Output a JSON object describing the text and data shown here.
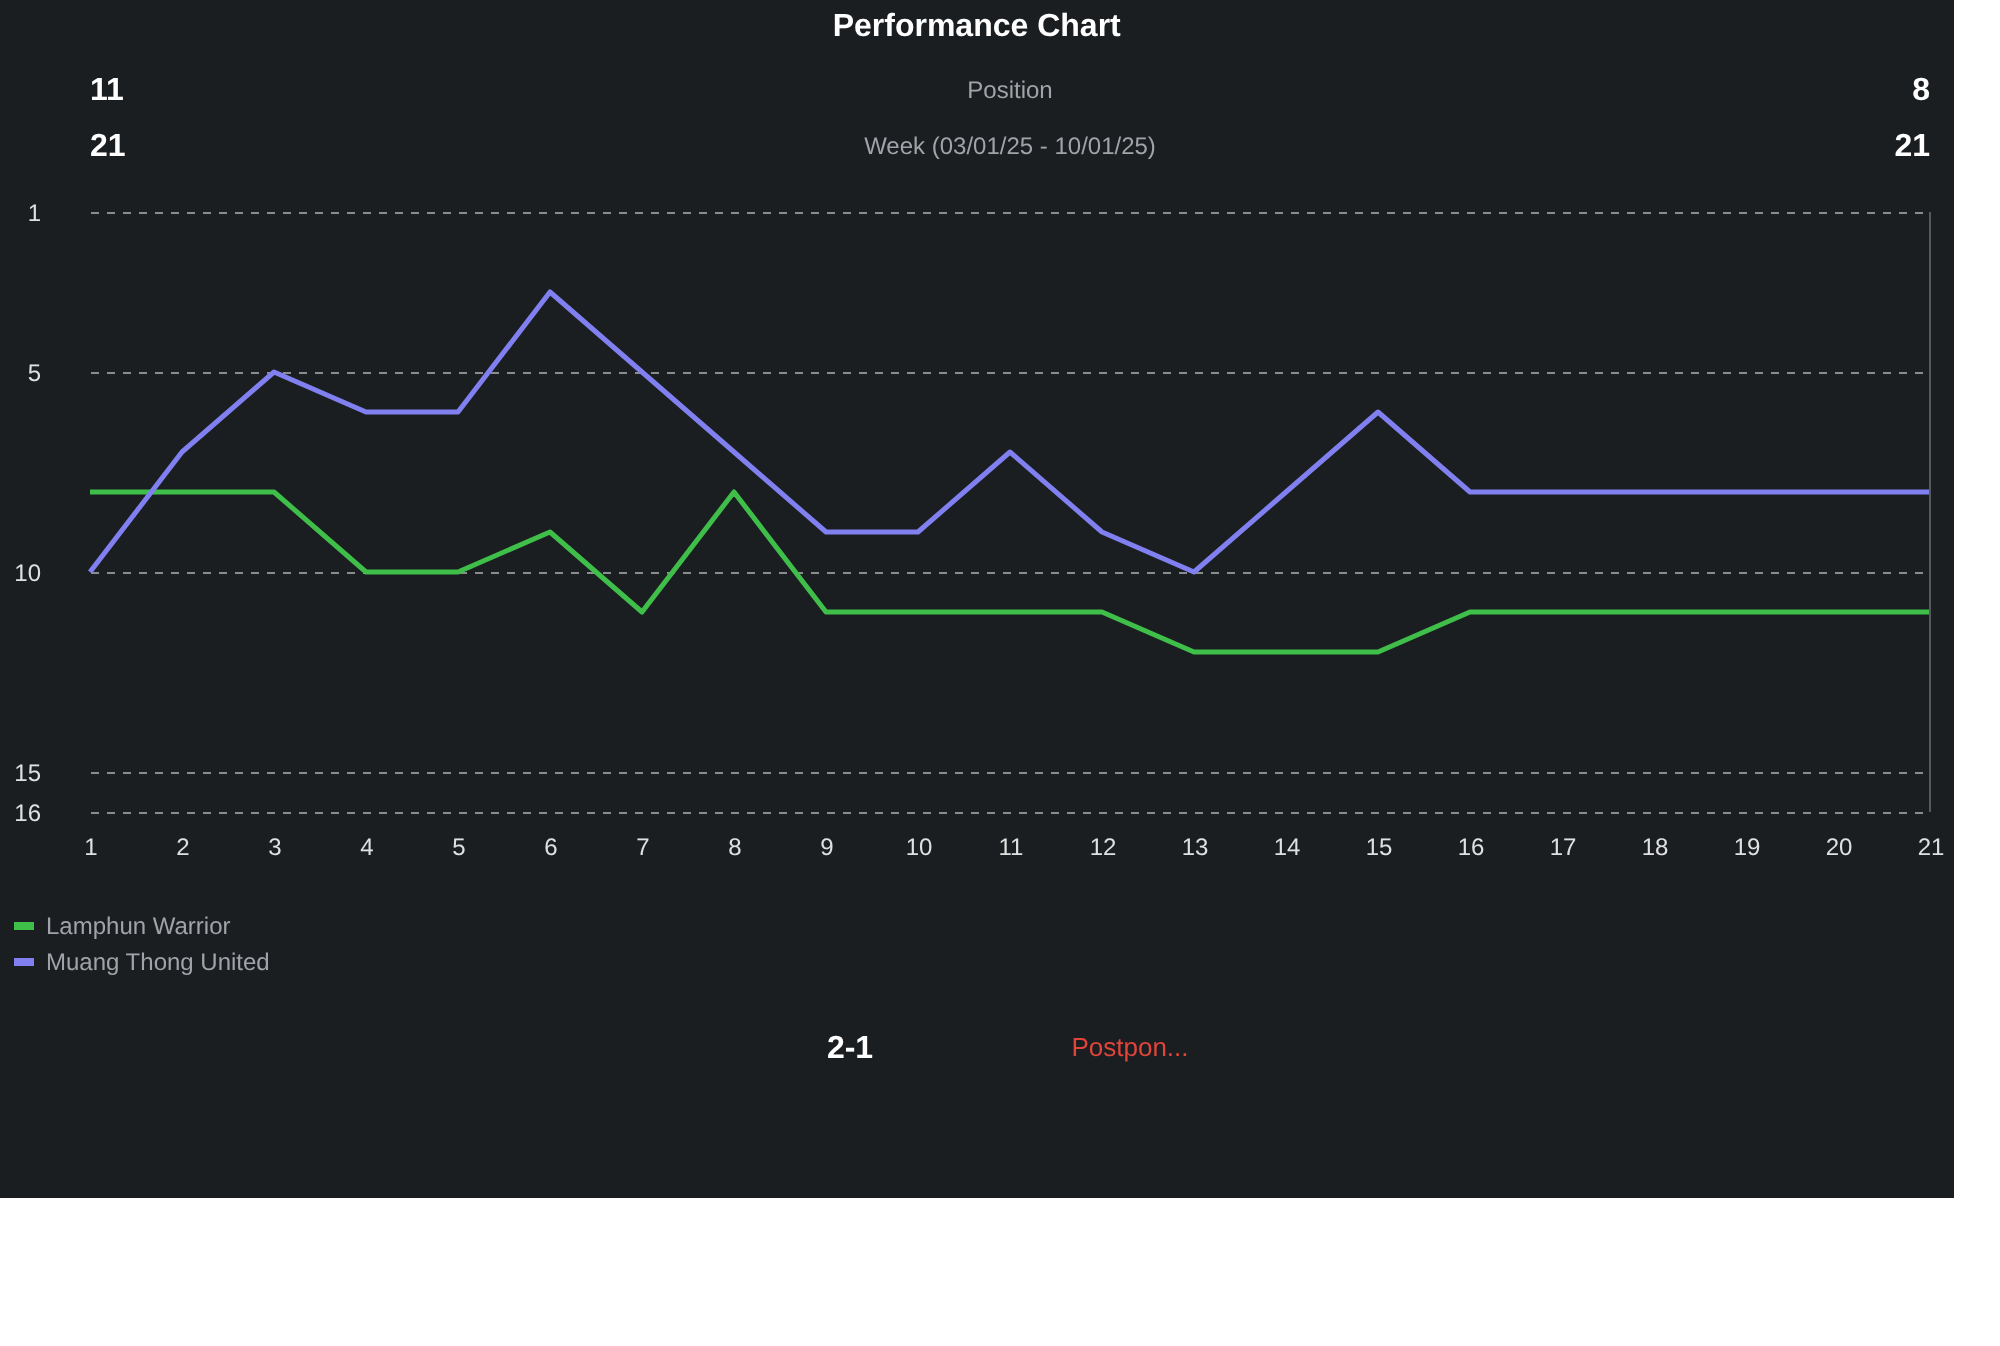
{
  "chart_data": {
    "type": "line",
    "title": "Performance Chart",
    "annotations": [
      "11",
      "21",
      "Position",
      "Week (03/01/25 - 10/01/25)",
      "8",
      "21",
      "2-1",
      "Postpon..."
    ],
    "x": [
      1,
      2,
      3,
      4,
      5,
      6,
      7,
      8,
      9,
      10,
      11,
      12,
      13,
      14,
      15,
      16,
      17,
      18,
      19,
      20,
      21
    ],
    "series": [
      {
        "name": "Lamphun Warrior",
        "color": "#3fbf4a",
        "values": [
          8,
          8,
          8,
          10,
          10,
          9,
          11,
          8,
          11,
          11,
          11,
          11,
          12,
          12,
          12,
          11,
          11,
          11,
          11,
          11,
          11
        ]
      },
      {
        "name": "Muang Thong United",
        "color": "#8080f0",
        "values": [
          10,
          7,
          5,
          6,
          6,
          3,
          5,
          7,
          9,
          9,
          7,
          9,
          10,
          8,
          6,
          8,
          8,
          8,
          8,
          8,
          8
        ]
      }
    ],
    "xlim": [
      1,
      21
    ],
    "xticks": [
      1,
      2,
      3,
      4,
      5,
      6,
      7,
      8,
      9,
      10,
      11,
      12,
      13,
      14,
      15,
      16,
      17,
      18,
      19,
      20,
      21
    ],
    "ylim": [
      16,
      1
    ],
    "yticks": [
      1,
      5,
      10,
      15,
      16
    ],
    "grid": "y",
    "legend": "bottom left",
    "marker": "none",
    "line_style": "solid"
  }
}
